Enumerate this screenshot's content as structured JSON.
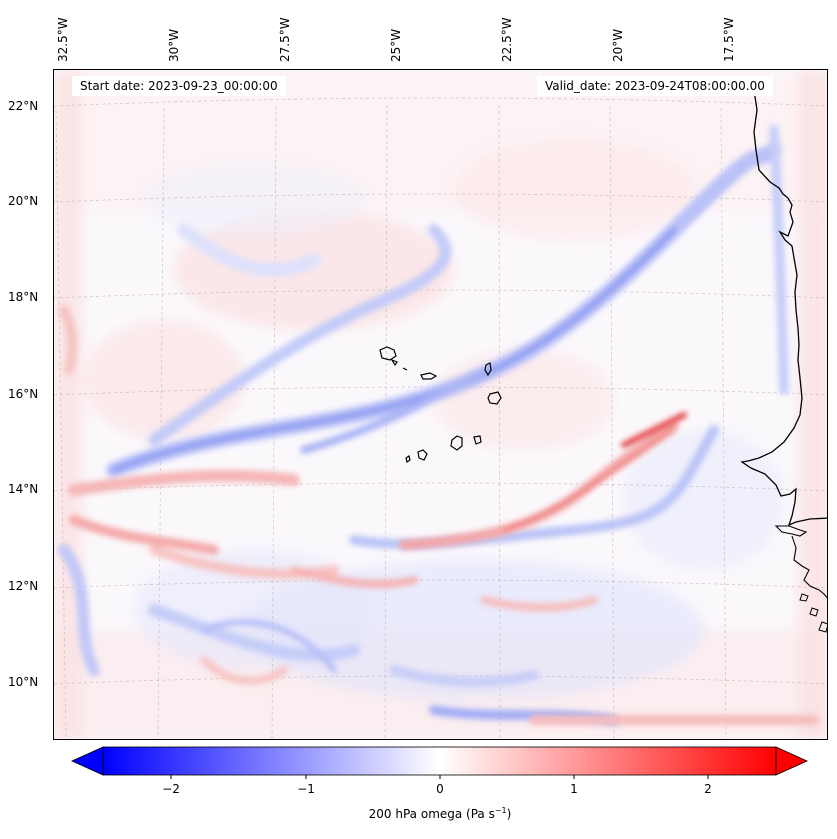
{
  "header": {
    "start_date": "Start date: 2023-09-23_00:00:00",
    "valid_date": "Valid_date: 2023-09-24T08:00:00.00"
  },
  "map": {
    "lon_labels": [
      "32.5°W",
      "30°W",
      "27.5°W",
      "25°W",
      "22.5°W",
      "20°W",
      "17.5°W"
    ],
    "lat_labels": [
      "22°N",
      "20°N",
      "18°N",
      "16°N",
      "14°N",
      "12°N",
      "10°N"
    ],
    "gridlines": true,
    "coastline_color": "#000000"
  },
  "colorbar": {
    "ticks": [
      "−2",
      "−1",
      "0",
      "1",
      "2"
    ],
    "range": [
      -2.7,
      2.7
    ],
    "low_color": "#0000ff",
    "high_color": "#ff0000",
    "label_main": "200 hPa omega (Pa s",
    "label_sup": "−1",
    "label_end": ")"
  }
}
